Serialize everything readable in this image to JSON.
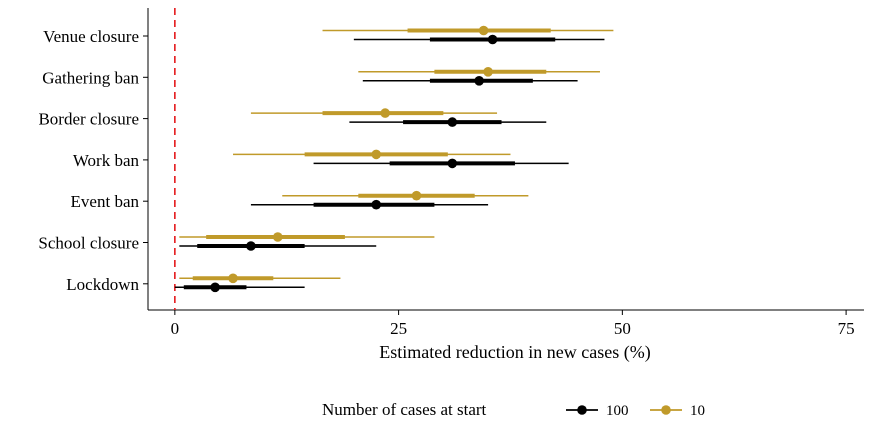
{
  "chart_data": {
    "type": "forest",
    "categories": [
      "Venue closure",
      "Gathering ban",
      "Border closure",
      "Work ban",
      "Event ban",
      "School closure",
      "Lockdown"
    ],
    "xlabel": "Estimated reduction in new cases (%)",
    "xlim": [
      -3,
      77
    ],
    "xticks": [
      0,
      25,
      50,
      75
    ],
    "reference_line": 0,
    "legend": {
      "title": "Number of cases at start",
      "placement": "bottom",
      "entries": [
        "100",
        "10"
      ]
    },
    "series": [
      {
        "name": "100",
        "color": "#000000",
        "estimates": [
          {
            "category": "Venue closure",
            "median": 35.5,
            "inner": [
              28.5,
              42.5
            ],
            "outer": [
              20.0,
              48.0
            ]
          },
          {
            "category": "Gathering ban",
            "median": 34.0,
            "inner": [
              28.5,
              40.0
            ],
            "outer": [
              21.0,
              45.0
            ]
          },
          {
            "category": "Border closure",
            "median": 31.0,
            "inner": [
              25.5,
              36.5
            ],
            "outer": [
              19.5,
              41.5
            ]
          },
          {
            "category": "Work ban",
            "median": 31.0,
            "inner": [
              24.0,
              38.0
            ],
            "outer": [
              15.5,
              44.0
            ]
          },
          {
            "category": "Event ban",
            "median": 22.5,
            "inner": [
              15.5,
              29.0
            ],
            "outer": [
              8.5,
              35.0
            ]
          },
          {
            "category": "School closure",
            "median": 8.5,
            "inner": [
              2.5,
              14.5
            ],
            "outer": [
              0.5,
              22.5
            ]
          },
          {
            "category": "Lockdown",
            "median": 4.5,
            "inner": [
              1.0,
              8.0
            ],
            "outer": [
              0.0,
              14.5
            ]
          }
        ]
      },
      {
        "name": "10",
        "color": "#C09A2A",
        "estimates": [
          {
            "category": "Venue closure",
            "median": 34.5,
            "inner": [
              26.0,
              42.0
            ],
            "outer": [
              16.5,
              49.0
            ]
          },
          {
            "category": "Gathering ban",
            "median": 35.0,
            "inner": [
              29.0,
              41.5
            ],
            "outer": [
              20.5,
              47.5
            ]
          },
          {
            "category": "Border closure",
            "median": 23.5,
            "inner": [
              16.5,
              30.0
            ],
            "outer": [
              8.5,
              36.0
            ]
          },
          {
            "category": "Work ban",
            "median": 22.5,
            "inner": [
              14.5,
              30.5
            ],
            "outer": [
              6.5,
              37.5
            ]
          },
          {
            "category": "Event ban",
            "median": 27.0,
            "inner": [
              20.5,
              33.5
            ],
            "outer": [
              12.0,
              39.5
            ]
          },
          {
            "category": "School closure",
            "median": 11.5,
            "inner": [
              3.5,
              19.0
            ],
            "outer": [
              0.5,
              29.0
            ]
          },
          {
            "category": "Lockdown",
            "median": 6.5,
            "inner": [
              2.0,
              11.0
            ],
            "outer": [
              0.5,
              18.5
            ]
          }
        ]
      }
    ]
  }
}
